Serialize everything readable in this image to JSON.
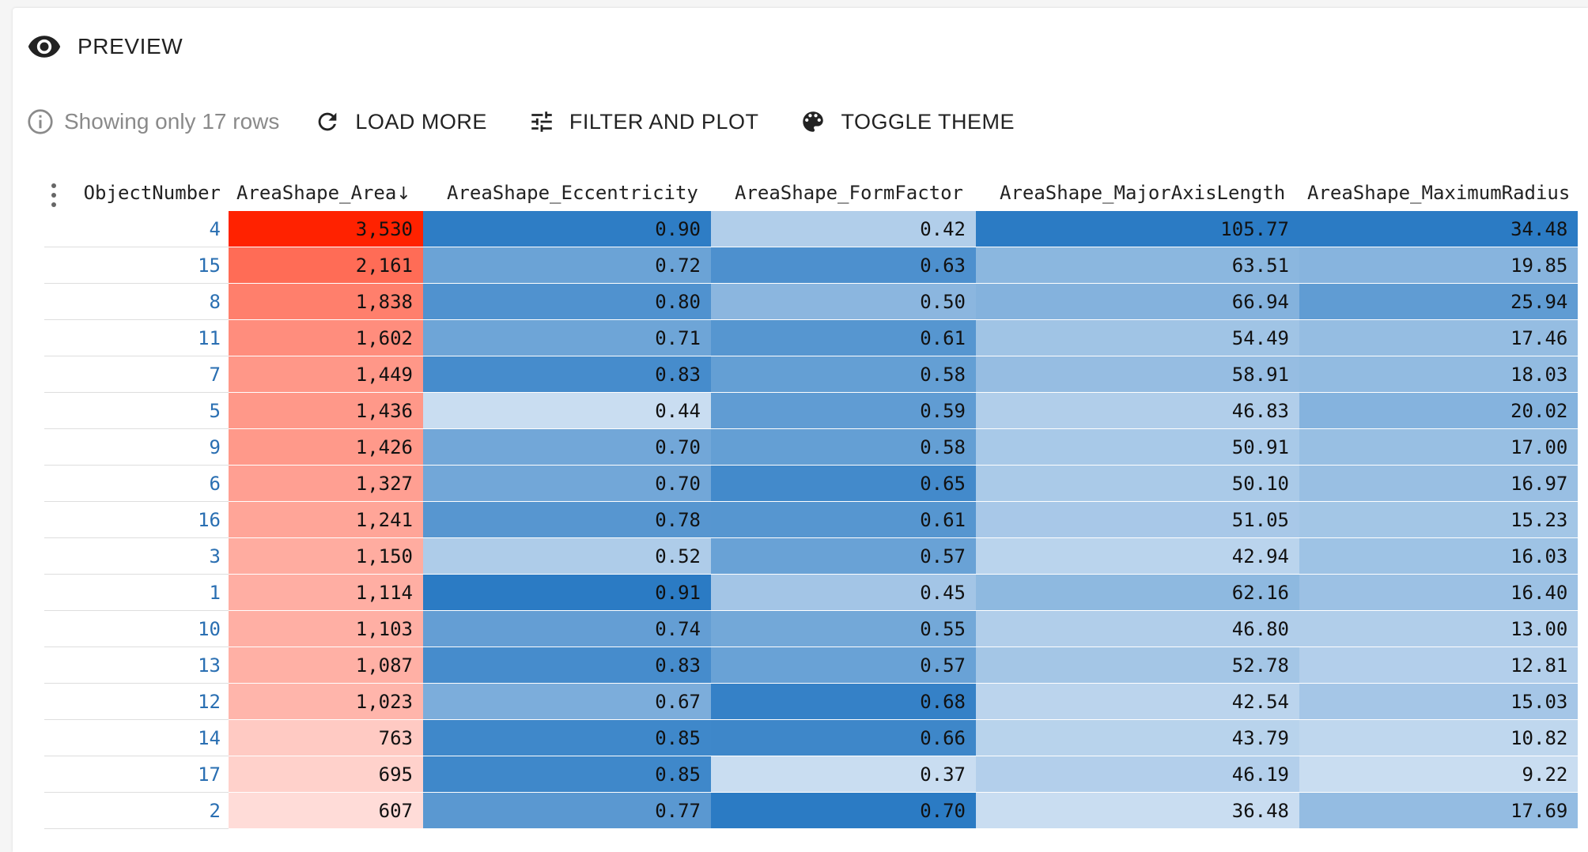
{
  "header": {
    "title": "PREVIEW"
  },
  "toolbar": {
    "info_text": "Showing only 17 rows",
    "load_more": "LOAD MORE",
    "filter_plot": "FILTER AND PLOT",
    "toggle_theme": "TOGGLE THEME"
  },
  "colors": {
    "accent_link": "#2a6fb2",
    "area_high": "#ff2200",
    "area_low": "#ffdcd8",
    "blue_dark": "#2b7bc4",
    "blue_light": "#c9ddf1"
  },
  "table": {
    "columns": [
      "ObjectNumber",
      "AreaShape_Area",
      "AreaShape_Eccentricity",
      "AreaShape_FormFactor",
      "AreaShape_MajorAxisLength",
      "AreaShape_MaximumRadius"
    ],
    "sort_indicator": "↓",
    "rows": [
      [
        "4",
        "3,530",
        "0.90",
        "0.42",
        "105.77",
        "34.48"
      ],
      [
        "15",
        "2,161",
        "0.72",
        "0.63",
        "63.51",
        "19.85"
      ],
      [
        "8",
        "1,838",
        "0.80",
        "0.50",
        "66.94",
        "25.94"
      ],
      [
        "11",
        "1,602",
        "0.71",
        "0.61",
        "54.49",
        "17.46"
      ],
      [
        "7",
        "1,449",
        "0.83",
        "0.58",
        "58.91",
        "18.03"
      ],
      [
        "5",
        "1,436",
        "0.44",
        "0.59",
        "46.83",
        "20.02"
      ],
      [
        "9",
        "1,426",
        "0.70",
        "0.58",
        "50.91",
        "17.00"
      ],
      [
        "6",
        "1,327",
        "0.70",
        "0.65",
        "50.10",
        "16.97"
      ],
      [
        "16",
        "1,241",
        "0.78",
        "0.61",
        "51.05",
        "15.23"
      ],
      [
        "3",
        "1,150",
        "0.52",
        "0.57",
        "42.94",
        "16.03"
      ],
      [
        "1",
        "1,114",
        "0.91",
        "0.45",
        "62.16",
        "16.40"
      ],
      [
        "10",
        "1,103",
        "0.74",
        "0.55",
        "46.80",
        "13.00"
      ],
      [
        "13",
        "1,087",
        "0.83",
        "0.57",
        "52.78",
        "12.81"
      ],
      [
        "12",
        "1,023",
        "0.67",
        "0.68",
        "42.54",
        "15.03"
      ],
      [
        "14",
        "763",
        "0.85",
        "0.66",
        "43.79",
        "10.82"
      ],
      [
        "17",
        "695",
        "0.85",
        "0.37",
        "46.19",
        "9.22"
      ],
      [
        "2",
        "607",
        "0.77",
        "0.70",
        "36.48",
        "17.69"
      ]
    ]
  }
}
